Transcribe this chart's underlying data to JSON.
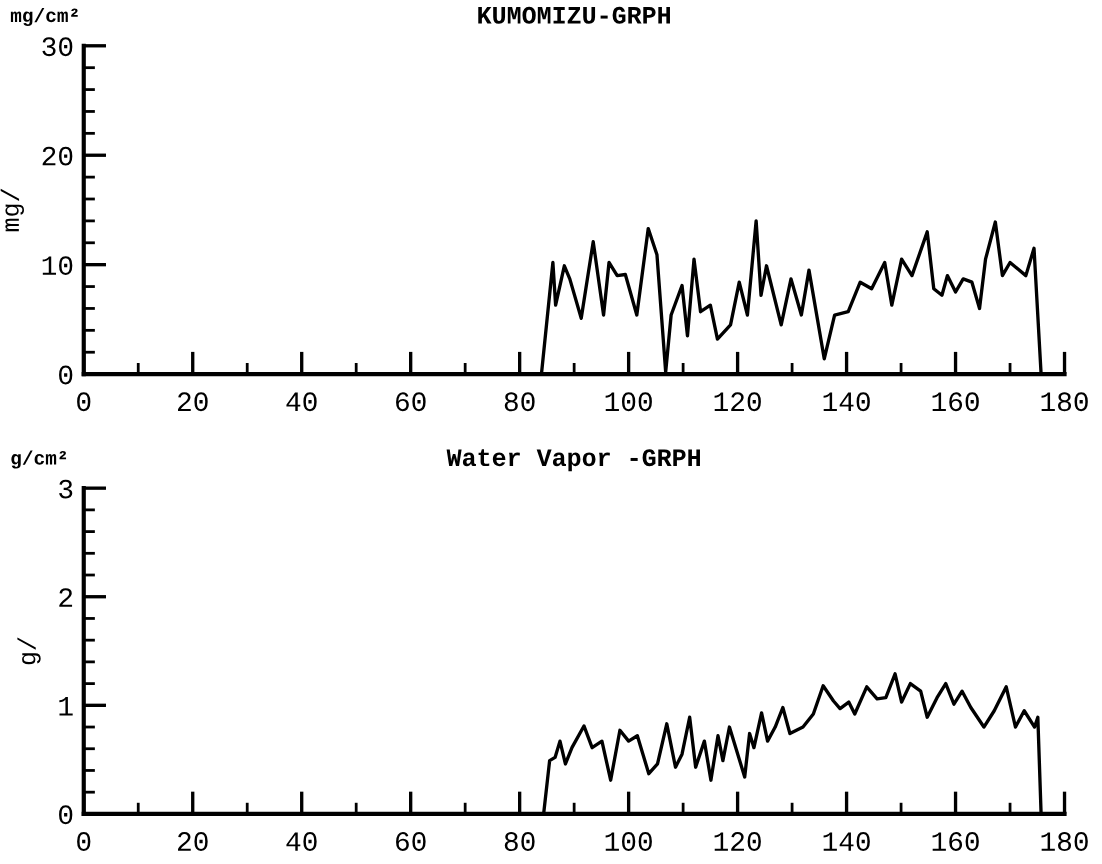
{
  "chart_data": [
    {
      "type": "line",
      "title": "KUMOMIZU-GRPH",
      "ylabel": "mg/",
      "annotations": [
        "mg/cm²"
      ],
      "grid": false,
      "legend": false,
      "xlim": [
        0,
        180
      ],
      "xticks": [
        0,
        {
          "value": 10,
          "label": null
        },
        20,
        {
          "value": 30,
          "label": null
        },
        40,
        {
          "value": 50,
          "label": null
        },
        60,
        {
          "value": 70,
          "label": null
        },
        80,
        {
          "value": 90,
          "label": null
        },
        100,
        {
          "value": 110,
          "label": null
        },
        120,
        {
          "value": 130,
          "label": null
        },
        140,
        {
          "value": 150,
          "label": null
        },
        160,
        {
          "value": 170,
          "label": null
        },
        180
      ],
      "ylim": [
        0,
        30
      ],
      "yticks": [
        0,
        {
          "value": 2,
          "label": null
        },
        {
          "value": 4,
          "label": null
        },
        {
          "value": 6,
          "label": null
        },
        {
          "value": 8,
          "label": null
        },
        10,
        {
          "value": 12,
          "label": null
        },
        {
          "value": 14,
          "label": null
        },
        {
          "value": 16,
          "label": null
        },
        {
          "value": 18,
          "label": null
        },
        20,
        {
          "value": 22,
          "label": null
        },
        {
          "value": 24,
          "label": null
        },
        {
          "value": 26,
          "label": null
        },
        {
          "value": 28,
          "label": null
        },
        30
      ],
      "series": [
        {
          "color": "#000000",
          "x": [
            84,
            86.1,
            86.6,
            88.2,
            89.2,
            91.3,
            93.5,
            95.4,
            96.4,
            97.9,
            99.4,
            101.5,
            103.6,
            105.2,
            106.8,
            107.8,
            109.8,
            110.8,
            112,
            113.2,
            115,
            116.3,
            118.7,
            120.3,
            121.8,
            123.4,
            124.3,
            125.3,
            128,
            129.8,
            131.7,
            133.1,
            135.9,
            137.8,
            140.3,
            142.5,
            144.6,
            147,
            148.3,
            150.1,
            152,
            154.8,
            156,
            157.5,
            158.5,
            160,
            161.4,
            163,
            164.4,
            165.5,
            167.3,
            168.6,
            170,
            172.9,
            174.4,
            175.7
          ],
          "values": [
            0,
            10.2,
            6.3,
            9.9,
            8.7,
            5.1,
            12.1,
            5.4,
            10.2,
            9,
            9.1,
            5.4,
            13.3,
            10.9,
            0.2,
            5.4,
            8.1,
            3.5,
            10.5,
            5.7,
            6.3,
            3.2,
            4.5,
            8.4,
            5.4,
            14,
            7.2,
            9.9,
            4.5,
            8.7,
            5.4,
            9.5,
            1.4,
            5.4,
            5.7,
            8.4,
            7.8,
            10.2,
            6.3,
            10.5,
            9,
            13,
            7.8,
            7.2,
            9,
            7.5,
            8.7,
            8.4,
            6,
            10.5,
            13.9,
            9,
            10.2,
            9,
            11.5,
            0
          ]
        }
      ]
    },
    {
      "type": "line",
      "title": "Water Vapor -GRPH",
      "ylabel": "g/",
      "annotations": [
        "g/cm²"
      ],
      "grid": false,
      "legend": false,
      "xlim": [
        0,
        180
      ],
      "xticks": [
        0,
        {
          "value": 10,
          "label": null
        },
        20,
        {
          "value": 30,
          "label": null
        },
        40,
        {
          "value": 50,
          "label": null
        },
        60,
        {
          "value": 70,
          "label": null
        },
        80,
        {
          "value": 90,
          "label": null
        },
        100,
        {
          "value": 110,
          "label": null
        },
        120,
        {
          "value": 130,
          "label": null
        },
        140,
        {
          "value": 150,
          "label": null
        },
        160,
        {
          "value": 170,
          "label": null
        },
        180
      ],
      "ylim": [
        0,
        3
      ],
      "yticks": [
        0,
        {
          "value": 0.2,
          "label": null
        },
        {
          "value": 0.4,
          "label": null
        },
        {
          "value": 0.6,
          "label": null
        },
        {
          "value": 0.8,
          "label": null
        },
        1,
        {
          "value": 1.2,
          "label": null
        },
        {
          "value": 1.4,
          "label": null
        },
        {
          "value": 1.6,
          "label": null
        },
        {
          "value": 1.8,
          "label": null
        },
        2,
        {
          "value": 2.2,
          "label": null
        },
        {
          "value": 2.4,
          "label": null
        },
        {
          "value": 2.6,
          "label": null
        },
        {
          "value": 2.8,
          "label": null
        },
        3
      ],
      "series": [
        {
          "color": "#000000",
          "x": [
            84.4,
            85.5,
            86.5,
            87.4,
            88.4,
            89.6,
            91.8,
            93.3,
            95.1,
            96.7,
            98.4,
            100,
            101.6,
            103.7,
            105.3,
            107,
            108.6,
            109.8,
            111.2,
            112.3,
            113.9,
            115.1,
            116.4,
            117.3,
            118.5,
            121.3,
            122.2,
            123,
            124.4,
            125.5,
            126.9,
            128.3,
            129.6,
            132,
            133.9,
            135.7,
            137.6,
            138.8,
            140.4,
            141.5,
            143.7,
            145.6,
            147.2,
            148.9,
            150.1,
            151.7,
            153.6,
            154.8,
            156.6,
            158.2,
            159.7,
            161.2,
            162.8,
            165.2,
            167.1,
            169.3,
            171,
            172.6,
            174.5,
            175.1,
            175.7
          ],
          "values": [
            0,
            0.49,
            0.52,
            0.67,
            0.46,
            0.61,
            0.81,
            0.61,
            0.67,
            0.31,
            0.77,
            0.67,
            0.72,
            0.37,
            0.46,
            0.83,
            0.43,
            0.55,
            0.89,
            0.43,
            0.67,
            0.31,
            0.72,
            0.49,
            0.8,
            0.34,
            0.74,
            0.61,
            0.93,
            0.67,
            0.8,
            0.98,
            0.74,
            0.8,
            0.92,
            1.18,
            1.04,
            0.97,
            1.03,
            0.92,
            1.17,
            1.06,
            1.07,
            1.29,
            1.03,
            1.2,
            1.13,
            0.89,
            1.07,
            1.2,
            1.01,
            1.13,
            0.98,
            0.8,
            0.95,
            1.17,
            0.8,
            0.95,
            0.8,
            0.89,
            0
          ]
        }
      ]
    }
  ]
}
